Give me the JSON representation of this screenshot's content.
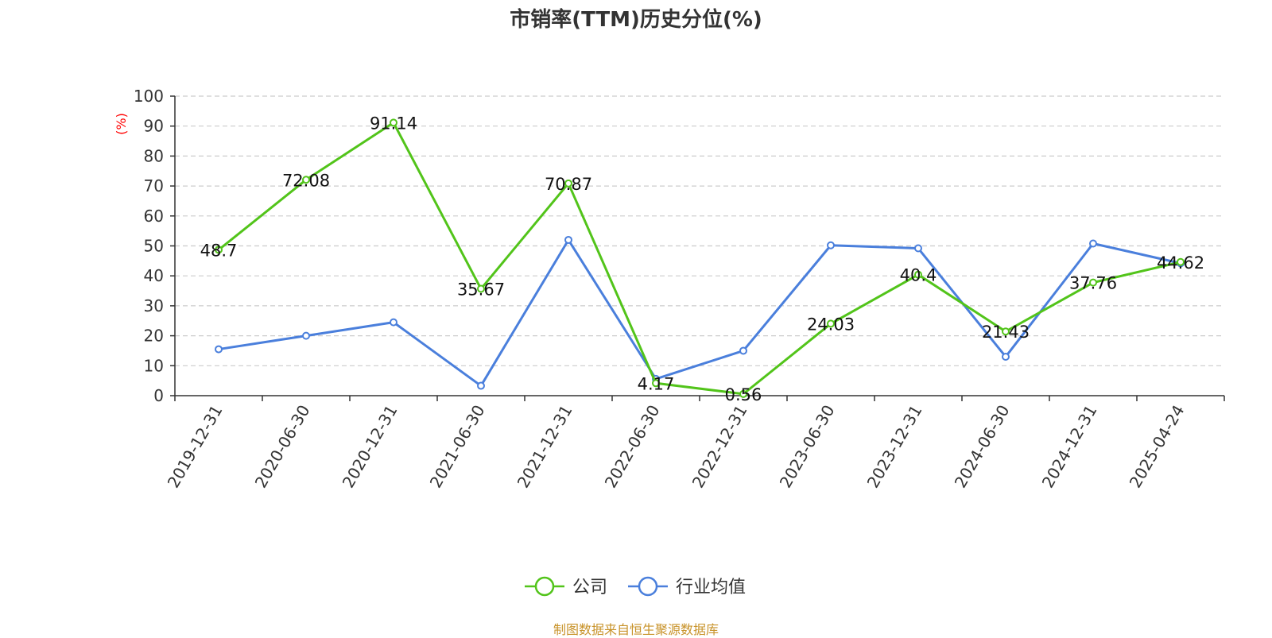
{
  "chart_data": {
    "type": "line",
    "title": "市销率(TTM)历史分位(%)",
    "ylabel": "(%)",
    "xlabel": "",
    "ylim": [
      0,
      100
    ],
    "yticks": [
      0,
      10,
      20,
      30,
      40,
      50,
      60,
      70,
      80,
      90,
      100
    ],
    "grid": true,
    "legend_position": "bottom",
    "categories": [
      "2019-12-31",
      "2020-06-30",
      "2020-12-31",
      "2021-06-30",
      "2021-12-31",
      "2022-06-30",
      "2022-12-31",
      "2023-06-30",
      "2023-12-31",
      "2024-06-30",
      "2024-12-31",
      "2025-04-24"
    ],
    "series": [
      {
        "name": "公司",
        "color": "#52c41a",
        "values": [
          48.7,
          72.08,
          91.14,
          35.67,
          70.87,
          4.17,
          0.56,
          24.03,
          40.4,
          21.43,
          37.76,
          44.62
        ],
        "labels": [
          "48.7",
          "72.08",
          "91.14",
          "35.67",
          "70.87",
          "4.17",
          "0.56",
          "24.03",
          "40.4",
          "21.43",
          "37.76",
          "44.62"
        ]
      },
      {
        "name": "行业均值",
        "color": "#4a7fdc",
        "values": [
          15.5,
          20.0,
          24.5,
          3.3,
          52.0,
          5.6,
          15.0,
          50.2,
          49.2,
          13.0,
          50.8,
          44.2
        ]
      }
    ],
    "axis_color": "#333333",
    "grid_color": "#cccccc",
    "ylabel_color": "#ff0000"
  },
  "source_note": "制图数据来自恒生聚源数据库"
}
